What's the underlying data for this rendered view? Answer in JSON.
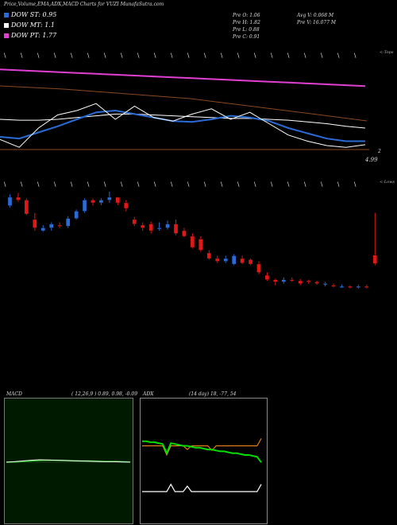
{
  "title": "Price,Volume,EMA,ADX,MACD Charts for VUZI MunafaSutra.com",
  "legend": [
    {
      "label": "DOW ST: 0.95",
      "color": "#2a6bd6"
    },
    {
      "label": "DOW MT: 1.1",
      "color": "#ffffff"
    },
    {
      "label": "DOW PT: 1.77",
      "color": "#e040d0"
    }
  ],
  "stats": {
    "prev_open": "Pre   O: 1.06",
    "prev_high": "Pre   H: 1.82",
    "prev_low": "Pre   L: 0.88",
    "prev_close": "Pre   C: 0.91",
    "avg_volume": "Avg V: 0.068 M",
    "prev_volume": "Pre   V: 16.077 M"
  },
  "labels": {
    "tops": "<-Tops",
    "lows": "<-Lows",
    "price_right": "2",
    "price_level": "4.99"
  },
  "chart_data": [
    {
      "type": "line",
      "name": "ema-price",
      "series": [
        {
          "name": "DOW PT",
          "color": "#e040d0",
          "values": [
            1.77,
            1.76,
            1.75,
            1.74,
            1.73,
            1.72,
            1.71,
            1.7,
            1.69,
            1.68,
            1.67,
            1.66,
            1.65,
            1.64,
            1.63,
            1.62,
            1.61,
            1.6,
            1.59,
            1.58
          ]
        },
        {
          "name": "DOW MT",
          "color": "#ffffff",
          "values": [
            1.2,
            1.19,
            1.19,
            1.2,
            1.22,
            1.24,
            1.26,
            1.26,
            1.25,
            1.24,
            1.23,
            1.22,
            1.21,
            1.21,
            1.2,
            1.19,
            1.17,
            1.15,
            1.12,
            1.1
          ]
        },
        {
          "name": "DOW ST",
          "color": "#2a6bd6",
          "values": [
            1.0,
            0.98,
            1.05,
            1.12,
            1.2,
            1.28,
            1.3,
            1.26,
            1.22,
            1.18,
            1.17,
            1.2,
            1.24,
            1.22,
            1.18,
            1.1,
            1.04,
            0.98,
            0.95,
            0.95
          ]
        },
        {
          "name": "price",
          "color": "#ffffff",
          "values": [
            0.97,
            0.88,
            1.1,
            1.25,
            1.3,
            1.38,
            1.2,
            1.35,
            1.22,
            1.18,
            1.26,
            1.32,
            1.2,
            1.28,
            1.15,
            1.02,
            0.95,
            0.9,
            0.88,
            0.91
          ]
        }
      ]
    },
    {
      "type": "bar",
      "name": "candles",
      "series": [
        {
          "name": "open",
          "values": [
            1.95,
            2.1,
            2.05,
            1.7,
            1.5,
            1.55,
            1.6,
            1.58,
            1.72,
            1.85,
            2.05,
            2.0,
            2.05,
            2.1,
            2.0,
            1.7,
            1.6,
            1.62,
            1.55,
            1.55,
            1.62,
            1.5,
            1.4,
            1.35,
            1.1,
            1.0,
            0.95,
            0.9,
            1.0,
            0.98,
            0.9,
            0.7,
            0.62,
            0.58,
            0.62,
            0.6,
            0.6,
            0.58,
            0.55,
            0.52,
            0.5,
            0.5,
            0.48,
            0.5,
            1.06
          ]
        },
        {
          "name": "close",
          "values": [
            2.1,
            2.05,
            1.8,
            1.55,
            1.55,
            1.62,
            1.58,
            1.72,
            1.85,
            2.05,
            2.0,
            2.05,
            2.1,
            2.0,
            1.9,
            1.62,
            1.55,
            1.5,
            1.55,
            1.62,
            1.45,
            1.4,
            1.2,
            1.15,
            1.0,
            0.95,
            1.0,
            1.05,
            0.92,
            0.9,
            0.75,
            0.62,
            0.58,
            0.62,
            0.6,
            0.55,
            0.58,
            0.55,
            0.55,
            0.5,
            0.5,
            0.48,
            0.5,
            0.48,
            0.91
          ]
        },
        {
          "name": "high",
          "values": [
            2.15,
            2.18,
            2.08,
            1.82,
            1.6,
            1.65,
            1.65,
            1.76,
            1.88,
            2.08,
            2.08,
            2.08,
            2.2,
            2.1,
            2.05,
            1.75,
            1.65,
            1.66,
            1.65,
            1.68,
            1.7,
            1.55,
            1.45,
            1.4,
            1.15,
            1.05,
            1.05,
            1.08,
            1.05,
            1.0,
            0.95,
            0.75,
            0.64,
            0.66,
            0.66,
            0.63,
            0.62,
            0.6,
            0.58,
            0.55,
            0.53,
            0.52,
            0.53,
            0.53,
            1.82
          ]
        },
        {
          "name": "low",
          "values": [
            1.92,
            2.02,
            1.78,
            1.5,
            1.48,
            1.5,
            1.55,
            1.55,
            1.7,
            1.82,
            1.95,
            1.96,
            2.0,
            1.96,
            1.85,
            1.58,
            1.5,
            1.45,
            1.5,
            1.52,
            1.42,
            1.38,
            1.18,
            1.12,
            0.98,
            0.92,
            0.92,
            0.88,
            0.9,
            0.88,
            0.72,
            0.6,
            0.52,
            0.55,
            0.58,
            0.52,
            0.55,
            0.53,
            0.5,
            0.48,
            0.47,
            0.46,
            0.46,
            0.46,
            0.88
          ]
        }
      ]
    },
    {
      "type": "line",
      "name": "macd",
      "title": "MACD",
      "params": "( 12,26,9 ) 0.89, 0.98, -0.09",
      "series": [
        {
          "name": "macd",
          "color": "#ffffff",
          "values": [
            0.0,
            0.02,
            0.05,
            0.08,
            0.1,
            0.09,
            0.08,
            0.07,
            0.06,
            0.05,
            0.04,
            0.03,
            0.02,
            0.02,
            0.01,
            0.0
          ]
        },
        {
          "name": "signal",
          "color": "#00c000",
          "values": [
            0.0,
            0.01,
            0.03,
            0.05,
            0.07,
            0.08,
            0.08,
            0.07,
            0.06,
            0.05,
            0.05,
            0.04,
            0.03,
            0.03,
            0.02,
            0.01
          ]
        }
      ]
    },
    {
      "type": "line",
      "name": "adx",
      "title": "ADX",
      "params": "(14 day) 18, -77, 54",
      "series": [
        {
          "name": "+DI",
          "color": "#ffffff",
          "values": [
            20,
            20,
            20,
            20,
            20,
            20,
            20,
            28,
            20,
            20,
            20,
            26,
            20,
            20,
            20,
            20,
            20,
            20,
            20,
            20,
            20,
            20,
            20,
            20,
            20,
            20,
            20,
            20,
            20,
            28
          ]
        },
        {
          "name": "-DI",
          "color": "#00e000",
          "values": [
            75,
            75,
            74,
            74,
            73,
            72,
            62,
            73,
            72,
            71,
            70,
            70,
            69,
            68,
            68,
            67,
            66,
            66,
            65,
            64,
            64,
            63,
            62,
            62,
            61,
            60,
            60,
            59,
            58,
            52
          ]
        },
        {
          "name": "ADX",
          "color": "#ff8c1a",
          "values": [
            70,
            70,
            70,
            70,
            70,
            70,
            60,
            70,
            70,
            70,
            70,
            66,
            70,
            70,
            70,
            70,
            70,
            65,
            70,
            70,
            70,
            70,
            70,
            70,
            70,
            70,
            70,
            70,
            70,
            78
          ]
        }
      ]
    }
  ]
}
